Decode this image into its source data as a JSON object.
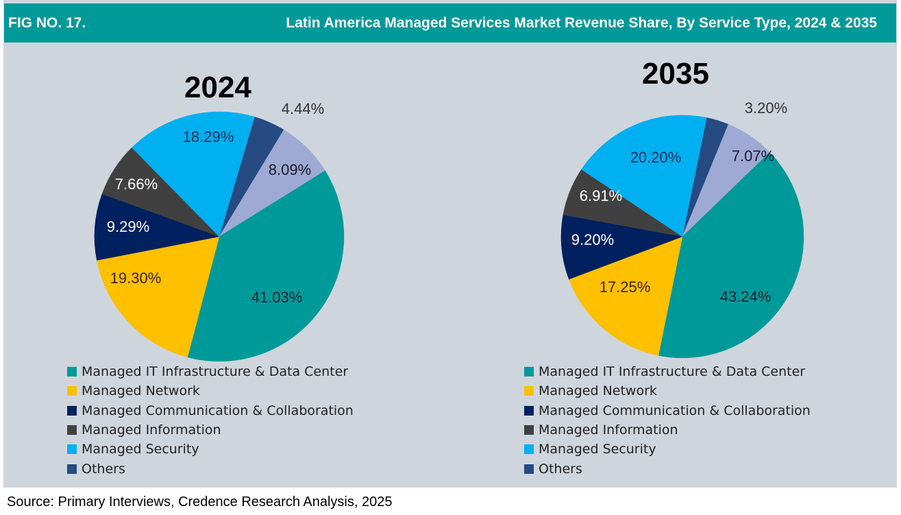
{
  "header": {
    "fig_no": "FIG NO. 17.",
    "title": "Latin America Managed Services Market Revenue Share, By Service Type, 2024 & 2035"
  },
  "source": "Source: Primary Interviews, Credence Research Analysis, 2025",
  "chart_data": [
    {
      "type": "pie",
      "title": "2024",
      "slices": [
        {
          "name": "Others",
          "value": 4.44,
          "label": "4.44%",
          "color": "#264a82",
          "label_color": "#333333"
        },
        {
          "name": "(unlabeled)",
          "value": 8.09,
          "label": "8.09%",
          "color": "#9eaad3",
          "label_color": "#1a1a2e"
        },
        {
          "name": "Managed IT Infrastructure & Data Center",
          "value": 41.03,
          "label": "41.03%",
          "color": "#009999",
          "label_color": "#0d2233"
        },
        {
          "name": "Managed Network",
          "value": 19.3,
          "label": "19.30%",
          "color": "#ffc000",
          "label_color": "#3a2000"
        },
        {
          "name": "Managed Communication & Collaboration",
          "value": 9.29,
          "label": "9.29%",
          "color": "#002060",
          "label_color": "#ffffff"
        },
        {
          "name": "Managed Information",
          "value": 7.66,
          "label": "7.66%",
          "color": "#404040",
          "label_color": "#ffffff"
        },
        {
          "name": "Managed Security",
          "value": 18.29,
          "label": "18.29%",
          "color": "#00b0f0",
          "label_color": "#0d2a5a"
        }
      ]
    },
    {
      "type": "pie",
      "title": "2035",
      "slices": [
        {
          "name": "Others",
          "value": 3.2,
          "label": "3.20%",
          "color": "#264a82",
          "label_color": "#333333"
        },
        {
          "name": "(unlabeled)",
          "value": 7.07,
          "label": "7.07%",
          "color": "#9eaad3",
          "label_color": "#1a1a2e"
        },
        {
          "name": "Managed IT Infrastructure & Data Center",
          "value": 43.24,
          "label": "43.24%",
          "color": "#009999",
          "label_color": "#0d2233"
        },
        {
          "name": "Managed Network",
          "value": 17.25,
          "label": "17.25%",
          "color": "#ffc000",
          "label_color": "#3a2000"
        },
        {
          "name": "Managed Communication & Collaboration",
          "value": 9.2,
          "label": "9.20%",
          "color": "#002060",
          "label_color": "#ffffff"
        },
        {
          "name": "Managed Information",
          "value": 6.91,
          "label": "6.91%",
          "color": "#404040",
          "label_color": "#ffffff"
        },
        {
          "name": "Managed Security",
          "value": 20.2,
          "label": "20.20%",
          "color": "#00b0f0",
          "label_color": "#0d2a5a"
        }
      ]
    }
  ],
  "legend": [
    {
      "label": "Managed IT Infrastructure & Data Center",
      "color": "#009999"
    },
    {
      "label": "Managed Network",
      "color": "#ffc000"
    },
    {
      "label": "Managed Communication & Collaboration",
      "color": "#002060"
    },
    {
      "label": "Managed Information",
      "color": "#404040"
    },
    {
      "label": "Managed Security",
      "color": "#00b0f0"
    },
    {
      "label": "Others",
      "color": "#264a82"
    }
  ]
}
